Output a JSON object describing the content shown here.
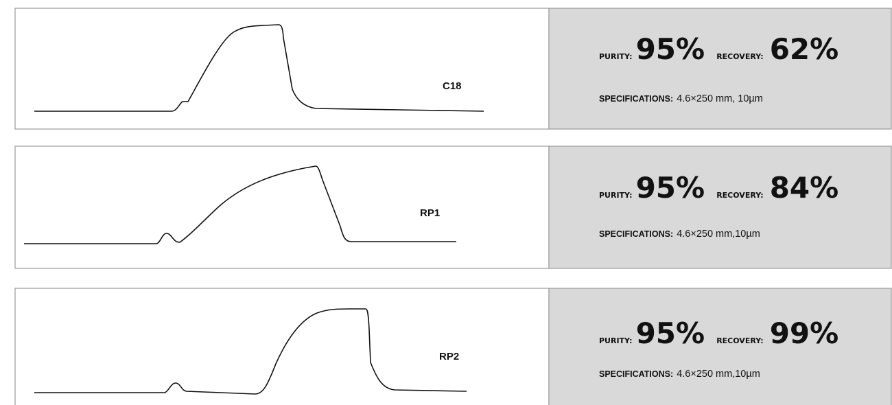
{
  "panels": [
    {
      "name": "C18",
      "purity_label": "PURITY:",
      "purity": "95%",
      "recovery_label": "RECOVERY:",
      "recovery": "62%",
      "spec_label": "SPECIFICATIONS:",
      "spec": "4.6×250 mm, 10µm"
    },
    {
      "name": "RP1",
      "purity_label": "PURITY:",
      "purity": "95%",
      "recovery_label": "RECOVERY:",
      "recovery": "84%",
      "spec_label": "SPECIFICATIONS:",
      "spec": "4.6×250 mm,10µm"
    },
    {
      "name": "RP2",
      "purity_label": "PURITY:",
      "purity": "95%",
      "recovery_label": "RECOVERY:",
      "recovery": "99%",
      "spec_label": "SPECIFICATIONS:",
      "spec": "4.6×250 mm,10µm"
    }
  ]
}
